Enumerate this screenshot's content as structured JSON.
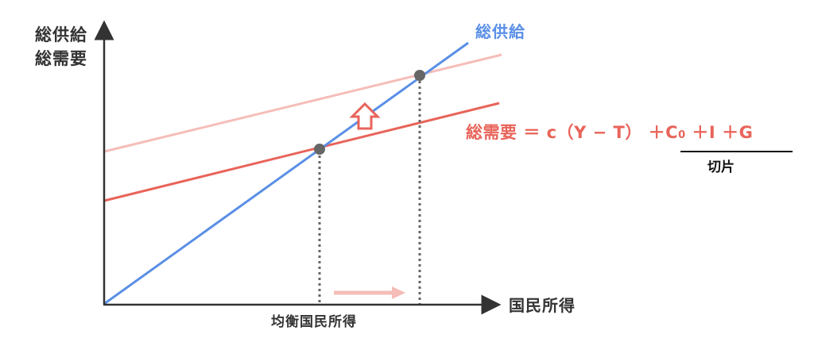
{
  "axes": {
    "y_label_line1": "総供給",
    "y_label_line2": "総需要",
    "x_label": "国民所得"
  },
  "equilibrium_label": "均衡国民所得",
  "aggregate_supply_label": "総供給",
  "aggregate_demand_formula": {
    "lhs": "総需要",
    "equals": "＝",
    "term1": "c（Y − T）",
    "plus1": "＋",
    "c_base": "C",
    "c_sub": "0",
    "plus2": "＋",
    "i_term": "I",
    "plus3": "＋",
    "g_term": "G"
  },
  "intercept_label": "切片",
  "colors": {
    "supply": "#5a8fe6",
    "demand": "#e8645a",
    "demand_shifted": "#f5bdb8",
    "point": "#666666",
    "axis": "#333333"
  }
}
